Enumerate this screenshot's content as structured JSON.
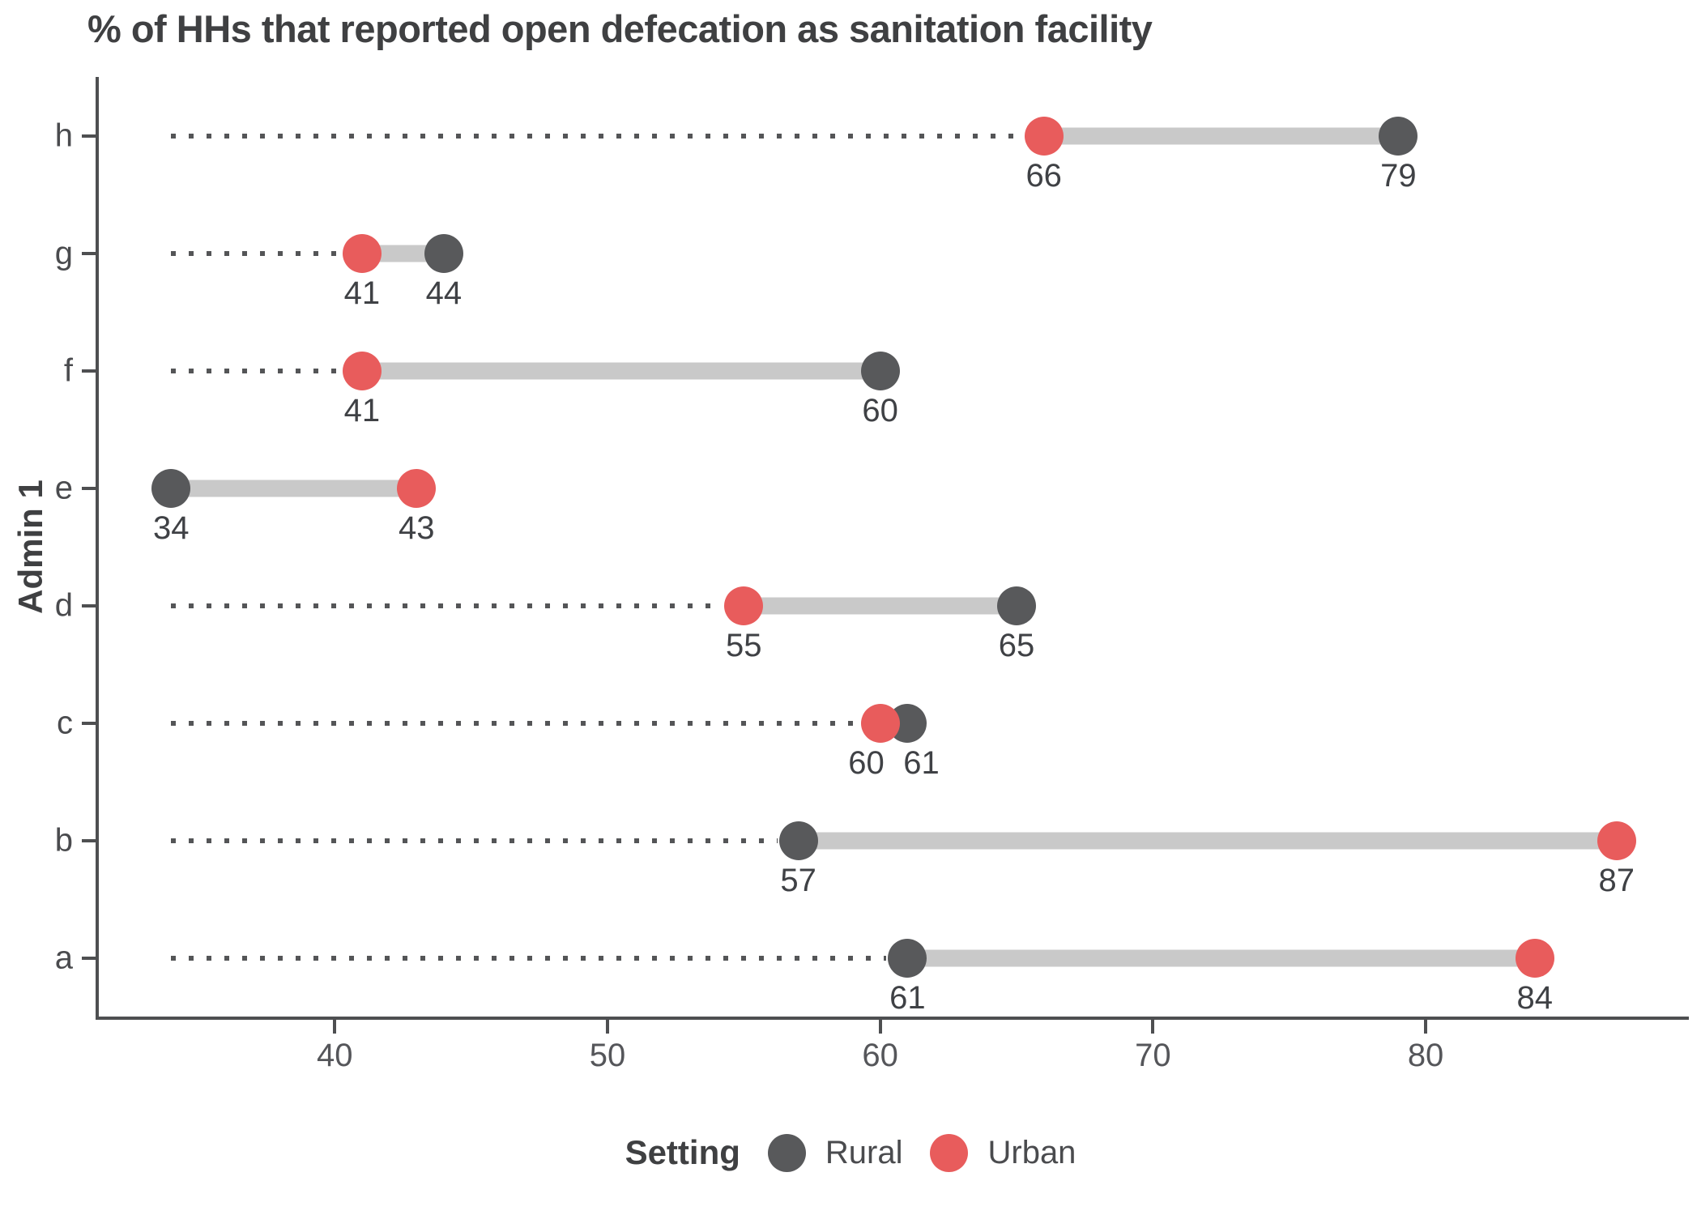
{
  "title": "% of HHs that reported open defecation as sanitation facility",
  "y_axis_title": "Admin 1",
  "legend": {
    "title": "Setting",
    "items": [
      {
        "label": "Rural",
        "color": "#58595b"
      },
      {
        "label": "Urban",
        "color": "#e85c5c"
      }
    ]
  },
  "colors": {
    "rural": "#58595b",
    "urban": "#e85c5c",
    "connector": "#c9c9c9",
    "leader": "#545557",
    "axis": "#4e4f51",
    "title_text": "#3f4042",
    "tick_text": "#55565a"
  },
  "chart_data": {
    "type": "dumbbell",
    "title": "% of HHs that reported open defecation as sanitation facility",
    "xlabel": "",
    "ylabel": "Admin 1",
    "xlim": [
      31.35,
      89.65
    ],
    "x_ticks": [
      40,
      50,
      60,
      70,
      80
    ],
    "grid": false,
    "legend_position": "bottom",
    "categories": [
      "h",
      "g",
      "f",
      "e",
      "d",
      "c",
      "b",
      "a"
    ],
    "series": [
      {
        "name": "Rural",
        "color": "#58595b",
        "values": [
          79,
          44,
          60,
          34,
          65,
          61,
          57,
          61
        ]
      },
      {
        "name": "Urban",
        "color": "#e85c5c",
        "values": [
          66,
          41,
          41,
          43,
          55,
          60,
          87,
          84
        ]
      }
    ]
  }
}
